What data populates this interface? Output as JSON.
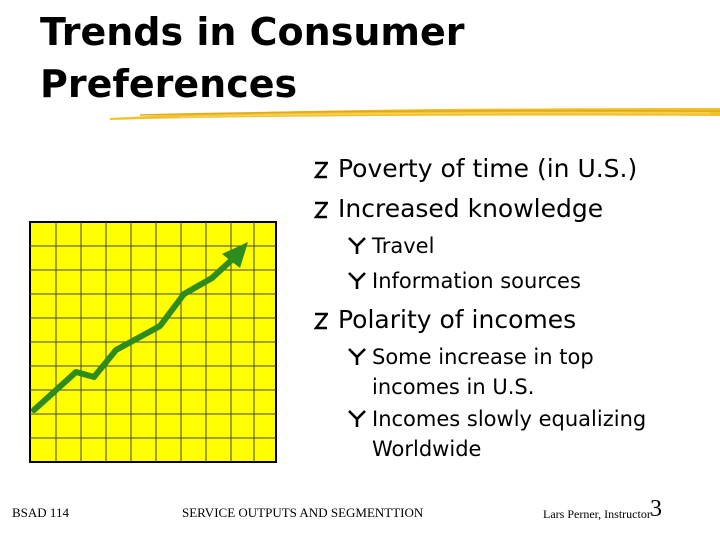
{
  "slide": {
    "title_line1": "Trends in Consumer",
    "title_line2": "Preferences",
    "accent_color": "#f2c12e",
    "graph": {
      "background": "#ffff00",
      "line_color": "#2e8b1e",
      "icon": "rising-trend-chart-icon"
    },
    "bullets": [
      {
        "text": "Poverty of time (in U.S.)"
      },
      {
        "text": "Increased knowledge",
        "sub": [
          {
            "text": "Travel"
          },
          {
            "text": "Information sources"
          }
        ]
      },
      {
        "text": "Polarity of incomes",
        "sub": [
          {
            "lines": [
              "Some increase in top",
              "incomes in U.S."
            ]
          },
          {
            "lines": [
              "Incomes slowly equalizing",
              "Worldwide"
            ]
          }
        ]
      }
    ]
  },
  "footer": {
    "course": "BSAD 114",
    "center": "SERVICE OUTPUTS AND SEGMENTTION",
    "instructor": "Lars Perner, Instructor",
    "page": "3"
  }
}
